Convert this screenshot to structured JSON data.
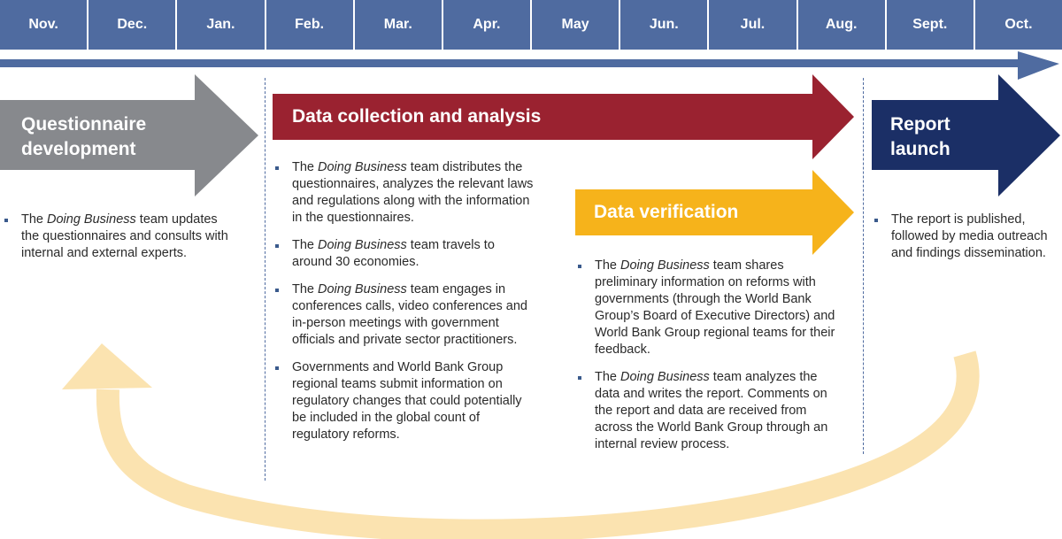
{
  "months": [
    "Nov.",
    "Dec.",
    "Jan.",
    "Feb.",
    "Mar.",
    "Apr.",
    "May",
    "Jun.",
    "Jul.",
    "Aug.",
    "Sept.",
    "Oct."
  ],
  "colors": {
    "month_bar": "#4f6ba0",
    "questionnaire": "#87898d",
    "data_collection": "#9a2230",
    "data_verification": "#f6b31b",
    "report_launch": "#1b2f66",
    "cycle_arrow": "#fbe3b0"
  },
  "phases": {
    "questionnaire": {
      "title_line1": "Questionnaire",
      "title_line2": "development",
      "bullets": [
        {
          "pre": "The ",
          "em": "Doing Business",
          "post": " team updates the questionnaires and consults with internal and external experts."
        }
      ]
    },
    "data_collection": {
      "title": "Data collection and analysis",
      "bullets": [
        {
          "pre": "The ",
          "em": "Doing Business",
          "post": " team distributes the questionnaires, analyzes the relevant laws and regulations along with the information in the questionnaires."
        },
        {
          "pre": "The ",
          "em": "Doing Business",
          "post": " team travels to around 30 economies."
        },
        {
          "pre": "The ",
          "em": "Doing Business",
          "post": " team engages in conferences calls, video conferences and in-person meetings with government officials and private sector practitioners."
        },
        {
          "pre": "Governments and World Bank Group regional teams submit information on regulatory changes that could potentially be included in the global count of regulatory reforms.",
          "em": "",
          "post": ""
        }
      ]
    },
    "data_verification": {
      "title": "Data verification",
      "bullets": [
        {
          "pre": "The ",
          "em": "Doing Business",
          "post": " team shares preliminary information on reforms with governments (through the World Bank Group’s Board of Executive Directors) and World Bank Group regional teams for their feedback."
        },
        {
          "pre": "The ",
          "em": "Doing Business",
          "post": " team analyzes the data and writes the report. Comments on the report and data are received from across the World Bank Group through an internal review process."
        }
      ]
    },
    "report_launch": {
      "title_line1": "Report",
      "title_line2": "launch",
      "bullets": [
        {
          "pre": "The report is published, followed by media outreach and findings dissemination.",
          "em": "",
          "post": ""
        }
      ]
    }
  }
}
